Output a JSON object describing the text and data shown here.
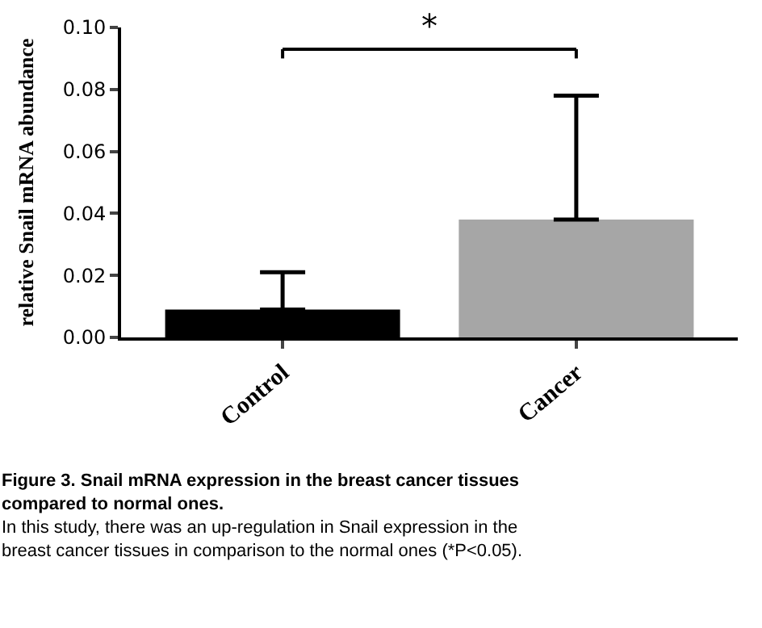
{
  "chart_data": {
    "type": "bar",
    "ylabel": "relative Snail mRNA abundance",
    "categories": [
      "Control",
      "Cancer"
    ],
    "values": [
      0.009,
      0.038
    ],
    "colors": [
      "#000000",
      "#a6a6a6"
    ],
    "errors": [
      [
        0.009,
        0.021
      ],
      [
        0.038,
        0.078
      ]
    ],
    "ylim": [
      0,
      0.1
    ],
    "yticks": [
      {
        "value": 0,
        "label": "0.00"
      },
      {
        "value": 0.02,
        "label": "0.02"
      },
      {
        "value": 0.04,
        "label": "0.04"
      },
      {
        "value": 0.06,
        "label": "0.06"
      },
      {
        "value": 0.08,
        "label": "0.08"
      },
      {
        "value": 0.1,
        "label": "0.10"
      }
    ],
    "annotations": [
      "*",
      "Figure 3. Snail mRNA expression in the breast cancer tissues compared to normal ones.",
      "In this study, there was an up-regulation in Snail expression in the breast cancer tissues in comparison to the normal ones (*P<0.05)."
    ]
  }
}
